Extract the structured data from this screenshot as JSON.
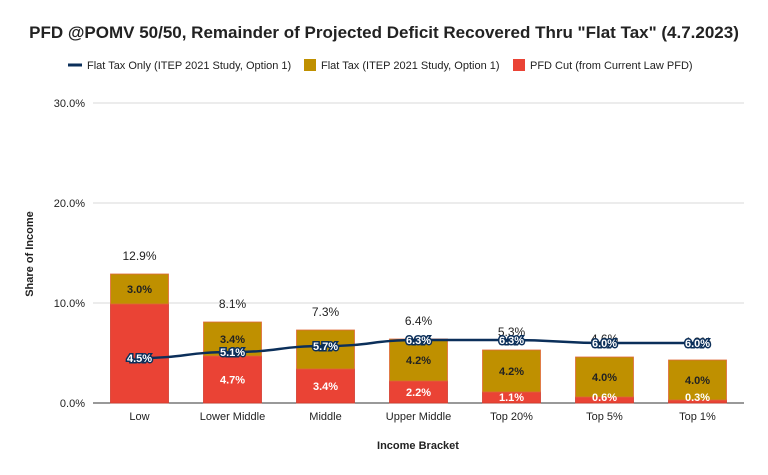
{
  "chart_data": {
    "type": "bar",
    "title": "PFD @POMV 50/50, Remainder of Projected Deficit Recovered Thru \"Flat Tax\" (4.7.2023)",
    "xlabel": "Income Bracket",
    "ylabel": "Share of Income",
    "ylim": [
      0,
      30
    ],
    "yticks": [
      "0.0%",
      "10.0%",
      "20.0%",
      "30.0%"
    ],
    "categories": [
      "Low",
      "Lower Middle",
      "Middle",
      "Upper Middle",
      "Top 20%",
      "Top 5%",
      "Top 1%"
    ],
    "legend_position": "top",
    "grid": true,
    "series": [
      {
        "name": "Flat Tax Only (ITEP 2021 Study, Option 1)",
        "kind": "line",
        "color": "#0b2f5a",
        "values": [
          4.5,
          5.1,
          5.7,
          6.3,
          6.3,
          6.0,
          6.0
        ],
        "labels": [
          "4.5%",
          "5.1%",
          "5.7%",
          "6.3%",
          "6.3%",
          "6.0%",
          "6.0%"
        ]
      },
      {
        "name": "Flat Tax (ITEP 2021 Study, Option 1)",
        "kind": "stacked-bar",
        "color": "#bf9000",
        "values": [
          3.0,
          3.4,
          3.9,
          4.2,
          4.2,
          4.0,
          4.0
        ],
        "labels": [
          "3.0%",
          "3.4%",
          "",
          "4.2%",
          "4.2%",
          "4.0%",
          "4.0%"
        ]
      },
      {
        "name": "PFD Cut (from Current Law PFD)",
        "kind": "stacked-bar",
        "color": "#ea4335",
        "values": [
          9.9,
          4.7,
          3.4,
          2.2,
          1.1,
          0.6,
          0.3
        ],
        "labels": [
          "",
          "4.7%",
          "3.4%",
          "2.2%",
          "1.1%",
          "0.6%",
          "0.3%"
        ]
      }
    ],
    "totals": [
      "12.9%",
      "8.1%",
      "7.3%",
      "6.4%",
      "5.3%",
      "4.6%",
      "4.3%"
    ],
    "totals_values": [
      12.9,
      8.1,
      7.3,
      6.4,
      5.3,
      4.6,
      4.3
    ]
  }
}
